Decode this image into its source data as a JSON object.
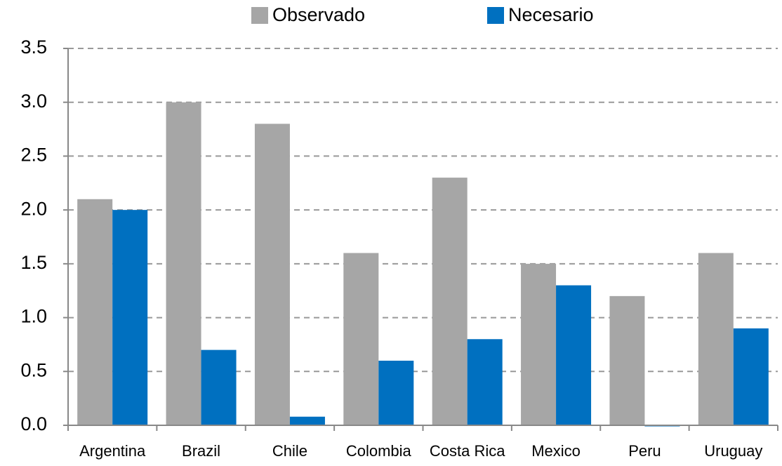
{
  "chart_data": {
    "type": "bar",
    "categories": [
      "Argentina",
      "Brazil",
      "Chile",
      "Colombia",
      "Costa Rica",
      "Mexico",
      "Peru",
      "Uruguay"
    ],
    "series": [
      {
        "name": "Observado",
        "color": "#a6a6a6",
        "values": [
          2.1,
          3.0,
          2.8,
          1.6,
          2.3,
          1.5,
          1.2,
          1.6
        ]
      },
      {
        "name": "Necesario",
        "color": "#0070c0",
        "values": [
          2.0,
          0.7,
          0.08,
          0.6,
          0.8,
          1.3,
          -0.01,
          0.9
        ]
      }
    ],
    "ylim": [
      0,
      3.5
    ],
    "yticks": [
      {
        "value": 0,
        "label": "0.0"
      },
      0.5,
      {
        "value": 1,
        "label": "1.0"
      },
      1.5,
      {
        "value": 2,
        "label": "2.0"
      },
      2.5,
      {
        "value": 3,
        "label": "3.0"
      },
      3.5
    ],
    "grid": true,
    "legend": "top"
  }
}
